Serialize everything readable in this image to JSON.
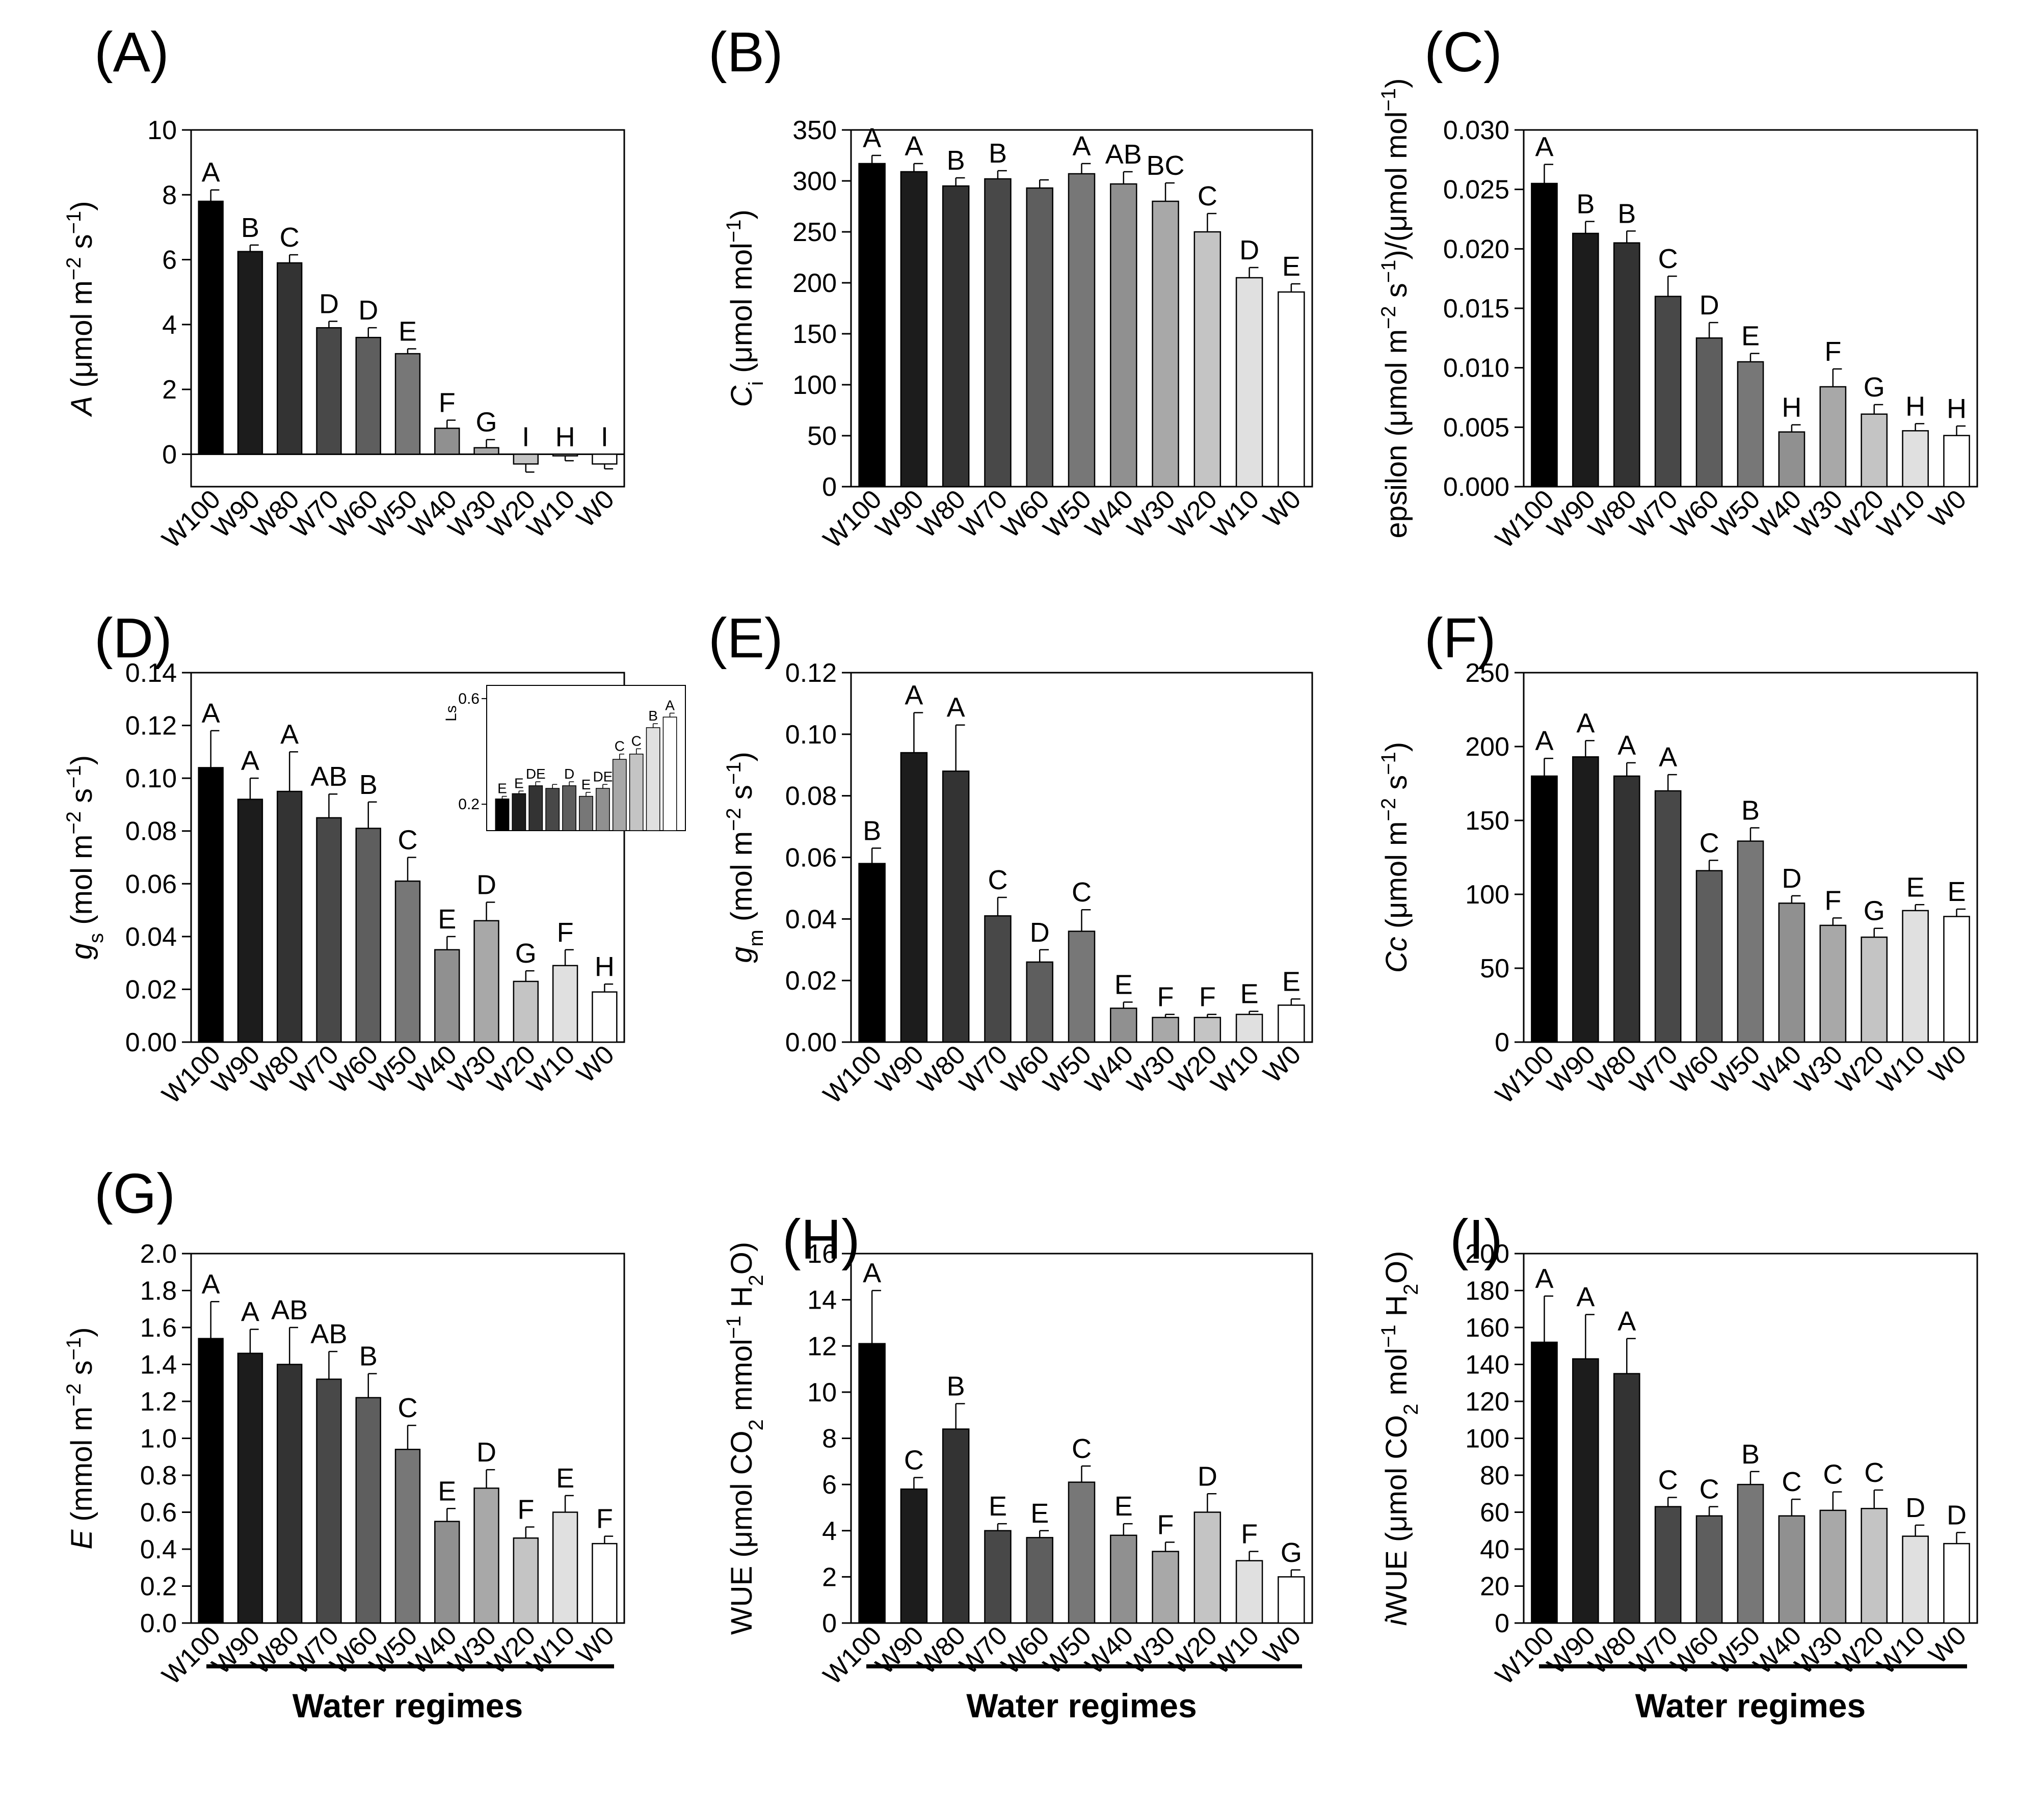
{
  "chart_data": [
    {
      "type": "bar",
      "panel": "(A)",
      "ylabel": "A (μmol m⁻² s⁻¹)",
      "ylabel_parts": [
        [
          "A",
          "it"
        ],
        [
          " (μmol m",
          ""
        ],
        [
          "−2",
          "sup"
        ],
        [
          " s",
          ""
        ],
        [
          "−1",
          "sup"
        ],
        [
          ")",
          ""
        ]
      ],
      "ylim": [
        -1,
        10
      ],
      "yticks": [
        "0",
        "2",
        "4",
        "6",
        "8",
        "10"
      ],
      "categories": [
        "W100",
        "W90",
        "W80",
        "W70",
        "W60",
        "W50",
        "W40",
        "W30",
        "W20",
        "W10",
        "W0"
      ],
      "values": [
        7.8,
        6.25,
        5.9,
        3.9,
        3.6,
        3.1,
        0.8,
        0.2,
        -0.3,
        -0.05,
        -0.3
      ],
      "errors": [
        0.35,
        0.2,
        0.25,
        0.2,
        0.3,
        0.15,
        0.25,
        0.25,
        0.25,
        0.15,
        0.15
      ],
      "letters": [
        "A",
        "B",
        "C",
        "D",
        "D",
        "E",
        "F",
        "G",
        "I",
        "H",
        "I"
      ]
    },
    {
      "type": "bar",
      "panel": "(B)",
      "ylabel": "Ci (μmol mol⁻¹)",
      "ylabel_parts": [
        [
          "C",
          "it"
        ],
        [
          "i",
          "sub"
        ],
        [
          " (μmol mol",
          ""
        ],
        [
          "−1",
          "sup"
        ],
        [
          ")",
          ""
        ]
      ],
      "ylim": [
        0,
        350
      ],
      "yticks": [
        "0",
        "50",
        "100",
        "150",
        "200",
        "250",
        "300",
        "350"
      ],
      "categories": [
        "W100",
        "W90",
        "W80",
        "W70",
        "W60",
        "W50",
        "W40",
        "W30",
        "W20",
        "W10",
        "W0"
      ],
      "values": [
        317,
        309,
        295,
        302,
        293,
        307,
        297,
        280,
        250,
        205,
        191
      ],
      "errors": [
        8,
        8,
        8,
        8,
        8,
        10,
        12,
        18,
        18,
        10,
        8
      ],
      "letters": [
        "A",
        "A",
        "B",
        "B",
        "",
        "A",
        "AB",
        "BC",
        "C",
        "D",
        "E"
      ]
    },
    {
      "type": "bar",
      "panel": "(C)",
      "ylabel": "epsilon (μmol m⁻² s⁻¹)/(μmol mol⁻¹)",
      "ylabel_parts": [
        [
          "epsilon (μmol m",
          ""
        ],
        [
          "−2",
          "sup"
        ],
        [
          " s",
          ""
        ],
        [
          "−1",
          "sup"
        ],
        [
          ")/(μmol mol",
          ""
        ],
        [
          "−1",
          "sup"
        ],
        [
          ")",
          ""
        ]
      ],
      "ylim": [
        0,
        0.03
      ],
      "yticks": [
        "0.000",
        "0.005",
        "0.010",
        "0.015",
        "0.020",
        "0.025",
        "0.030"
      ],
      "categories": [
        "W100",
        "W90",
        "W80",
        "W70",
        "W60",
        "W50",
        "W40",
        "W30",
        "W20",
        "W10",
        "W0"
      ],
      "values": [
        0.0255,
        0.0213,
        0.0205,
        0.016,
        0.0125,
        0.0105,
        0.0046,
        0.0084,
        0.0061,
        0.0047,
        0.0043
      ],
      "errors": [
        0.0016,
        0.001,
        0.001,
        0.0017,
        0.0013,
        0.0007,
        0.0006,
        0.0015,
        0.0008,
        0.0006,
        0.0008
      ],
      "letters": [
        "A",
        "B",
        "B",
        "C",
        "D",
        "E",
        "H",
        "F",
        "G",
        "H",
        "H"
      ]
    },
    {
      "type": "bar",
      "panel": "(D)",
      "ylabel": "gs (mol m⁻² s⁻¹)",
      "ylabel_parts": [
        [
          "g",
          "it"
        ],
        [
          "s",
          "sub"
        ],
        [
          " (mol m",
          ""
        ],
        [
          "−2",
          "sup"
        ],
        [
          " s",
          ""
        ],
        [
          "−1",
          "sup"
        ],
        [
          ")",
          ""
        ]
      ],
      "ylim": [
        0,
        0.14
      ],
      "yticks": [
        "0.00",
        "0.02",
        "0.04",
        "0.06",
        "0.08",
        "0.10",
        "0.12",
        "0.14"
      ],
      "categories": [
        "W100",
        "W90",
        "W80",
        "W70",
        "W60",
        "W50",
        "W40",
        "W30",
        "W20",
        "W10",
        "W0"
      ],
      "values": [
        0.104,
        0.092,
        0.095,
        0.085,
        0.081,
        0.061,
        0.035,
        0.046,
        0.023,
        0.029,
        0.019
      ],
      "errors": [
        0.014,
        0.008,
        0.015,
        0.009,
        0.01,
        0.009,
        0.005,
        0.007,
        0.004,
        0.006,
        0.003
      ],
      "letters": [
        "A",
        "A",
        "A",
        "AB",
        "B",
        "C",
        "E",
        "D",
        "G",
        "F",
        "H"
      ],
      "inset": {
        "ylabel": "Ls",
        "ylim": [
          0.1,
          0.65
        ],
        "yticks": [
          "0.2",
          "0.6"
        ],
        "ytick_values": [
          0.2,
          0.6
        ],
        "values": [
          0.22,
          0.24,
          0.27,
          0.26,
          0.27,
          0.23,
          0.26,
          0.37,
          0.39,
          0.49,
          0.53
        ],
        "errors": [
          0.01,
          0.01,
          0.015,
          0.015,
          0.015,
          0.015,
          0.015,
          0.02,
          0.02,
          0.015,
          0.015
        ],
        "letters": [
          "E",
          "E",
          "DE",
          "",
          "D",
          "E",
          "DE",
          "C",
          "C",
          "B",
          "A"
        ]
      }
    },
    {
      "type": "bar",
      "panel": "(E)",
      "ylabel": "gm (mol m⁻² s⁻¹)",
      "ylabel_parts": [
        [
          "g",
          "it"
        ],
        [
          "m",
          "sub"
        ],
        [
          " (mol m",
          ""
        ],
        [
          "−2",
          "sup"
        ],
        [
          " s",
          ""
        ],
        [
          "−1",
          "sup"
        ],
        [
          ")",
          ""
        ]
      ],
      "ylim": [
        0,
        0.12
      ],
      "yticks": [
        "0.00",
        "0.02",
        "0.04",
        "0.06",
        "0.08",
        "0.10",
        "0.12"
      ],
      "categories": [
        "W100",
        "W90",
        "W80",
        "W70",
        "W60",
        "W50",
        "W40",
        "W30",
        "W20",
        "W10",
        "W0"
      ],
      "values": [
        0.058,
        0.094,
        0.088,
        0.041,
        0.026,
        0.036,
        0.011,
        0.008,
        0.008,
        0.009,
        0.012
      ],
      "errors": [
        0.005,
        0.013,
        0.015,
        0.006,
        0.004,
        0.007,
        0.002,
        0.001,
        0.001,
        0.001,
        0.002
      ],
      "letters": [
        "B",
        "A",
        "A",
        "C",
        "D",
        "C",
        "E",
        "F",
        "F",
        "E",
        "E"
      ]
    },
    {
      "type": "bar",
      "panel": "(F)",
      "ylabel": "Cc (μmol m⁻² s⁻¹)",
      "ylabel_parts": [
        [
          "Cc",
          "it"
        ],
        [
          " (μmol m",
          ""
        ],
        [
          "−2",
          "sup"
        ],
        [
          " s",
          ""
        ],
        [
          "−1",
          "sup"
        ],
        [
          ")",
          ""
        ]
      ],
      "ylim": [
        0,
        250
      ],
      "yticks": [
        "0",
        "50",
        "100",
        "150",
        "200",
        "250"
      ],
      "categories": [
        "W100",
        "W90",
        "W80",
        "W70",
        "W60",
        "W50",
        "W40",
        "W30",
        "W20",
        "W10",
        "W0"
      ],
      "values": [
        180,
        193,
        180,
        170,
        116,
        136,
        94,
        79,
        71,
        89,
        85
      ],
      "errors": [
        12,
        11,
        9,
        11,
        7,
        9,
        5,
        5,
        6,
        4,
        5
      ],
      "letters": [
        "A",
        "A",
        "A",
        "A",
        "C",
        "B",
        "D",
        "F",
        "G",
        "E",
        "E"
      ]
    },
    {
      "type": "bar",
      "panel": "(G)",
      "ylabel": "E (mmol m⁻² s⁻¹)",
      "ylabel_parts": [
        [
          "E",
          "it"
        ],
        [
          " (mmol m",
          ""
        ],
        [
          "−2",
          "sup"
        ],
        [
          " s",
          ""
        ],
        [
          "−1",
          "sup"
        ],
        [
          ")",
          ""
        ]
      ],
      "ylim": [
        0,
        2.0
      ],
      "yticks": [
        "0.0",
        "0.2",
        "0.4",
        "0.6",
        "0.8",
        "1.0",
        "1.2",
        "1.4",
        "1.6",
        "1.8",
        "2.0"
      ],
      "categories": [
        "W100",
        "W90",
        "W80",
        "W70",
        "W60",
        "W50",
        "W40",
        "W30",
        "W20",
        "W10",
        "W0"
      ],
      "values": [
        1.54,
        1.46,
        1.4,
        1.32,
        1.22,
        0.94,
        0.55,
        0.73,
        0.46,
        0.6,
        0.43
      ],
      "errors": [
        0.2,
        0.13,
        0.2,
        0.15,
        0.13,
        0.13,
        0.07,
        0.1,
        0.06,
        0.09,
        0.04
      ],
      "letters": [
        "A",
        "A",
        "AB",
        "AB",
        "B",
        "C",
        "E",
        "D",
        "F",
        "E",
        "F"
      ],
      "xtitle": "Water regimes"
    },
    {
      "type": "bar",
      "panel": "(H)",
      "ylabel": "WUE (μmol CO₂ mmol⁻¹ H₂O)",
      "ylabel_parts": [
        [
          "WUE (μmol CO",
          ""
        ],
        [
          "2",
          "sub"
        ],
        [
          " mmol",
          ""
        ],
        [
          "−1",
          "sup"
        ],
        [
          " H",
          ""
        ],
        [
          "2",
          "sub"
        ],
        [
          "O)",
          ""
        ]
      ],
      "ylim": [
        0,
        16
      ],
      "yticks": [
        "0",
        "2",
        "4",
        "6",
        "8",
        "10",
        "12",
        "14",
        "16"
      ],
      "categories": [
        "W100",
        "W90",
        "W80",
        "W70",
        "W60",
        "W50",
        "W40",
        "W30",
        "W20",
        "W10",
        "W0"
      ],
      "values": [
        12.1,
        5.8,
        8.4,
        4.0,
        3.7,
        6.1,
        3.8,
        3.1,
        4.8,
        2.7,
        2.0
      ],
      "errors": [
        2.3,
        0.5,
        1.1,
        0.3,
        0.3,
        0.7,
        0.5,
        0.4,
        0.8,
        0.4,
        0.3
      ],
      "letters": [
        "A",
        "C",
        "B",
        "E",
        "E",
        "C",
        "E",
        "F",
        "D",
        "F",
        "G"
      ],
      "xtitle": "Water regimes"
    },
    {
      "type": "bar",
      "panel": "(I)",
      "ylabel": "iWUE (μmol CO₂ mol⁻¹ H₂O)",
      "ylabel_parts": [
        [
          "i",
          "it"
        ],
        [
          "WUE (μmol CO",
          ""
        ],
        [
          "2",
          "sub"
        ],
        [
          " mol",
          ""
        ],
        [
          "−1",
          "sup"
        ],
        [
          " H",
          ""
        ],
        [
          "2",
          "sub"
        ],
        [
          "O)",
          ""
        ]
      ],
      "ylim": [
        0,
        200
      ],
      "yticks": [
        "0",
        "20",
        "40",
        "60",
        "80",
        "100",
        "120",
        "140",
        "160",
        "180",
        "200"
      ],
      "categories": [
        "W100",
        "W90",
        "W80",
        "W70",
        "W60",
        "W50",
        "W40",
        "W30",
        "W20",
        "W10",
        "W0"
      ],
      "values": [
        152,
        143,
        135,
        63,
        58,
        75,
        58,
        61,
        62,
        47,
        43
      ],
      "errors": [
        25,
        24,
        19,
        5,
        5,
        7,
        9,
        10,
        10,
        6,
        6
      ],
      "letters": [
        "A",
        "A",
        "A",
        "C",
        "C",
        "B",
        "C",
        "C",
        "C",
        "D",
        "D"
      ],
      "xtitle": "Water regimes"
    }
  ],
  "colors": {
    "bars": [
      "#000000",
      "#1c1c1c",
      "#333333",
      "#484848",
      "#5e5e5e",
      "#777777",
      "#909090",
      "#a8a8a8",
      "#c4c4c4",
      "#e0e0e0",
      "#ffffff"
    ],
    "axis": "#000000"
  }
}
